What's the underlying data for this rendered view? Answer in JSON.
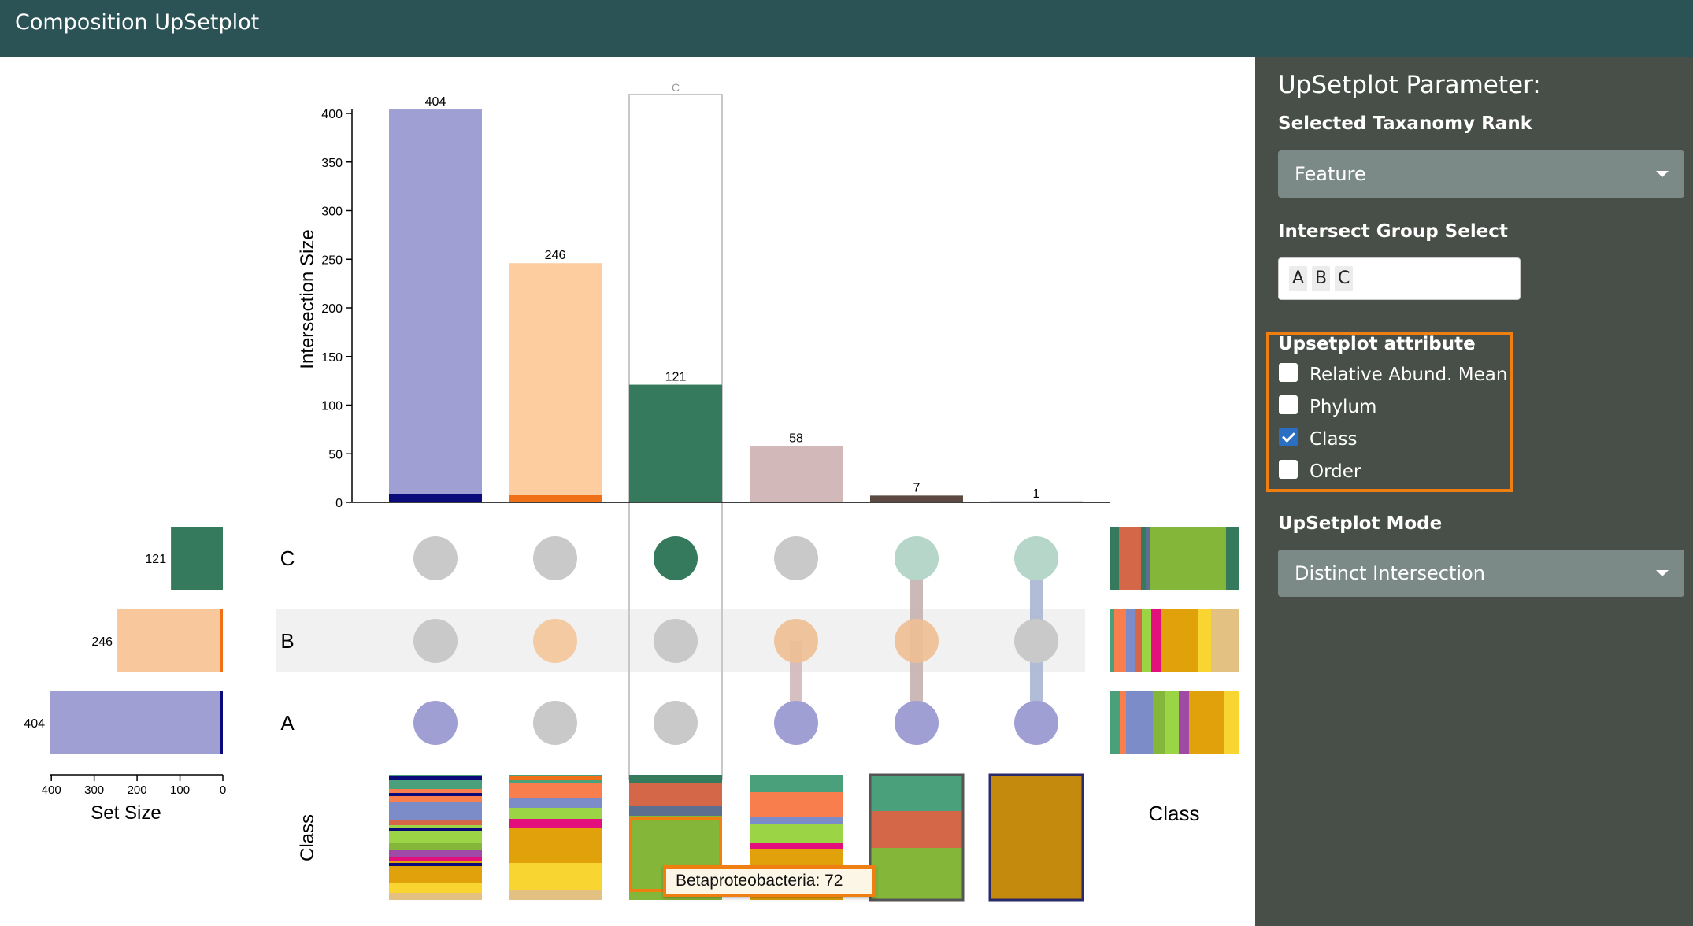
{
  "app": {
    "title": "Composition UpSetplot"
  },
  "panel": {
    "title": "UpSetplot Parameter:",
    "rank_label": "Selected Taxanomy Rank",
    "rank_value": "Feature",
    "group_label": "Intersect Group Select",
    "groups": [
      "A",
      "B",
      "C"
    ],
    "attribute_label": "Upsetplot attribute",
    "attributes": [
      {
        "label": "Relative Abund. Mean",
        "checked": false
      },
      {
        "label": "Phylum",
        "checked": false
      },
      {
        "label": "Class",
        "checked": true
      },
      {
        "label": "Order",
        "checked": false
      }
    ],
    "mode_label": "UpSetplot Mode",
    "mode_value": "Distinct Intersection"
  },
  "tooltip": {
    "text": "Betaproteobacteria: 72"
  },
  "labels": {
    "highlight_column": "C",
    "set_size_label": "Set Size",
    "class_row_label": "Class",
    "class_legend_label": "Class"
  },
  "chart_data": {
    "type": "bar",
    "ylabel": "Intersection Size",
    "ylim": [
      0,
      400
    ],
    "yticks": [
      0,
      50,
      100,
      150,
      200,
      250,
      300,
      350,
      400
    ],
    "intersections": [
      {
        "sets": [
          "A"
        ],
        "size": 404,
        "color": "#a09fd4"
      },
      {
        "sets": [
          "B"
        ],
        "size": 246,
        "color": "#fdcda0"
      },
      {
        "sets": [
          "C"
        ],
        "size": 121,
        "color": "#367a5e"
      },
      {
        "sets": [
          "A",
          "B"
        ],
        "size": 58,
        "color": "#d2b8b9"
      },
      {
        "sets": [
          "A",
          "B",
          "C"
        ],
        "size": 7,
        "color": "#5c4a42"
      },
      {
        "sets": [
          "A",
          "C"
        ],
        "size": 1,
        "color": "#5e6f8e"
      }
    ],
    "sets": [
      {
        "name": "C",
        "size": 121,
        "color": "#367a5e",
        "inactive_color": "#b5d6c8"
      },
      {
        "name": "B",
        "size": 246,
        "color": "#f9c79c",
        "inactive_color": "#eebf94"
      },
      {
        "name": "A",
        "size": 404,
        "color": "#a09fd4",
        "inactive_color": "#a09fd4"
      }
    ],
    "set_size_xticks": [
      400,
      300,
      200,
      100,
      0
    ],
    "set_size_xlim": [
      0,
      404
    ],
    "highlighted_intersection": 2
  }
}
